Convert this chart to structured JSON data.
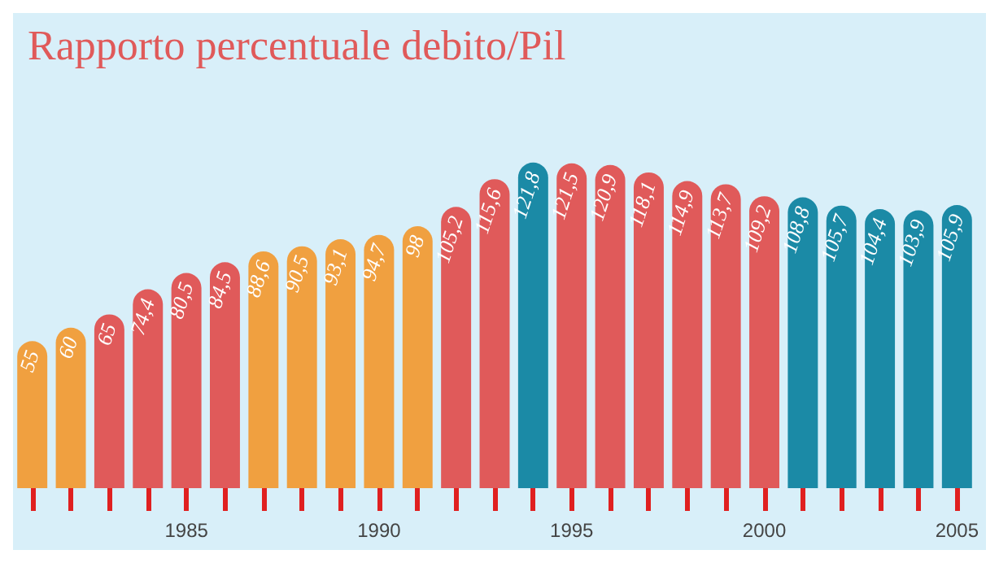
{
  "chart_data": {
    "type": "bar",
    "title": "Rapporto percentuale debito/Pil",
    "categories": [
      null,
      null,
      null,
      null,
      "1985",
      null,
      null,
      null,
      null,
      "1990",
      null,
      null,
      null,
      null,
      "1995",
      null,
      null,
      null,
      null,
      "2000",
      null,
      null,
      null,
      null,
      "2005"
    ],
    "values": [
      55,
      60,
      65,
      74.4,
      80.5,
      84.5,
      88.6,
      90.5,
      93.1,
      94.7,
      98,
      105.2,
      115.6,
      121.8,
      121.5,
      120.9,
      118.1,
      114.9,
      113.7,
      109.2,
      108.8,
      105.7,
      104.4,
      103.9,
      105.9
    ],
    "colors": [
      "#f0a040",
      "#f0a040",
      "#e05a5a",
      "#e05a5a",
      "#e05a5a",
      "#e05a5a",
      "#f0a040",
      "#f0a040",
      "#f0a040",
      "#f0a040",
      "#f0a040",
      "#e05a5a",
      "#e05a5a",
      "#1b8aa6",
      "#e05a5a",
      "#e05a5a",
      "#e05a5a",
      "#e05a5a",
      "#e05a5a",
      "#e05a5a",
      "#1b8aa6",
      "#1b8aa6",
      "#1b8aa6",
      "#1b8aa6",
      "#1b8aa6"
    ],
    "value_labels": [
      "55",
      "60",
      "65",
      "74,4",
      "80,5",
      "84,5",
      "88,6",
      "90,5",
      "93,1",
      "94,7",
      "98",
      "105,2",
      "115,6",
      "121,8",
      "121,5",
      "120,9",
      "118,1",
      "114,9",
      "113,7",
      "109,2",
      "108,8",
      "105,7",
      "104,4",
      "103,9",
      "105,9"
    ]
  }
}
